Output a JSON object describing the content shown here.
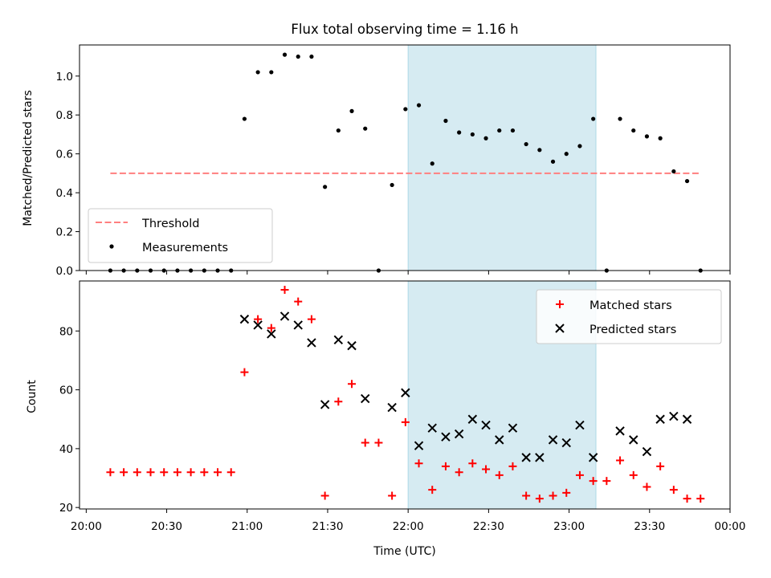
{
  "chart_data": {
    "title": "Flux total observing time = 1.16 h",
    "xlabel": "Time (UTC)",
    "x_tick_labels": [
      "20:00",
      "20:30",
      "21:00",
      "21:30",
      "22:00",
      "22:30",
      "23:00",
      "23:30",
      "00:00"
    ],
    "x_range_minutes_from_20_00": [
      -2.5,
      240
    ],
    "highlight_span": {
      "start": "22:00",
      "end": "23:10",
      "color": "#add8e6"
    },
    "panels": [
      {
        "type": "scatter",
        "ylabel": "Matched/Predicted stars",
        "ylim": [
          0,
          1.16
        ],
        "y_ticks": [
          "0.0",
          "0.2",
          "0.4",
          "0.6",
          "0.8",
          "1.0"
        ],
        "legend_position": "lower-left",
        "threshold": {
          "name": "Threshold",
          "value": 0.5,
          "x_start": "20:09",
          "x_end": "23:49",
          "color": "#ff7f7f"
        },
        "series": [
          {
            "name": "Measurements",
            "color": "#000000",
            "points": [
              [
                "20:09",
                0.0
              ],
              [
                "20:14",
                0.0
              ],
              [
                "20:19",
                0.0
              ],
              [
                "20:24",
                0.0
              ],
              [
                "20:29",
                0.0
              ],
              [
                "20:34",
                0.0
              ],
              [
                "20:39",
                0.0
              ],
              [
                "20:44",
                0.0
              ],
              [
                "20:49",
                0.0
              ],
              [
                "20:54",
                0.0
              ],
              [
                "20:59",
                0.78
              ],
              [
                "21:04",
                1.02
              ],
              [
                "21:09",
                1.02
              ],
              [
                "21:14",
                1.11
              ],
              [
                "21:19",
                1.1
              ],
              [
                "21:24",
                1.1
              ],
              [
                "21:29",
                0.43
              ],
              [
                "21:34",
                0.72
              ],
              [
                "21:39",
                0.82
              ],
              [
                "21:44",
                0.73
              ],
              [
                "21:49",
                0.0
              ],
              [
                "21:54",
                0.44
              ],
              [
                "21:59",
                0.83
              ],
              [
                "22:04",
                0.85
              ],
              [
                "22:09",
                0.55
              ],
              [
                "22:14",
                0.77
              ],
              [
                "22:19",
                0.71
              ],
              [
                "22:24",
                0.7
              ],
              [
                "22:29",
                0.68
              ],
              [
                "22:34",
                0.72
              ],
              [
                "22:39",
                0.72
              ],
              [
                "22:44",
                0.65
              ],
              [
                "22:49",
                0.62
              ],
              [
                "22:54",
                0.56
              ],
              [
                "22:59",
                0.6
              ],
              [
                "23:04",
                0.64
              ],
              [
                "23:09",
                0.78
              ],
              [
                "23:14",
                0.0
              ],
              [
                "23:19",
                0.78
              ],
              [
                "23:24",
                0.72
              ],
              [
                "23:29",
                0.69
              ],
              [
                "23:34",
                0.68
              ],
              [
                "23:39",
                0.51
              ],
              [
                "23:44",
                0.46
              ],
              [
                "23:49",
                0.0
              ]
            ]
          }
        ]
      },
      {
        "type": "scatter",
        "ylabel": "Count",
        "ylim": [
          19.5,
          97
        ],
        "y_ticks": [
          "20",
          "40",
          "60",
          "80"
        ],
        "legend_position": "upper-right",
        "series": [
          {
            "name": "Matched stars",
            "marker": "plus",
            "color": "#ff0000",
            "points": [
              [
                "20:09",
                32
              ],
              [
                "20:14",
                32
              ],
              [
                "20:19",
                32
              ],
              [
                "20:24",
                32
              ],
              [
                "20:29",
                32
              ],
              [
                "20:34",
                32
              ],
              [
                "20:39",
                32
              ],
              [
                "20:44",
                32
              ],
              [
                "20:49",
                32
              ],
              [
                "20:54",
                32
              ],
              [
                "20:59",
                66
              ],
              [
                "21:04",
                84
              ],
              [
                "21:09",
                81
              ],
              [
                "21:14",
                94
              ],
              [
                "21:19",
                90
              ],
              [
                "21:24",
                84
              ],
              [
                "21:29",
                24
              ],
              [
                "21:34",
                56
              ],
              [
                "21:39",
                62
              ],
              [
                "21:44",
                42
              ],
              [
                "21:49",
                42
              ],
              [
                "21:54",
                24
              ],
              [
                "21:59",
                49
              ],
              [
                "22:04",
                35
              ],
              [
                "22:09",
                26
              ],
              [
                "22:14",
                34
              ],
              [
                "22:19",
                32
              ],
              [
                "22:24",
                35
              ],
              [
                "22:29",
                33
              ],
              [
                "22:34",
                31
              ],
              [
                "22:39",
                34
              ],
              [
                "22:44",
                24
              ],
              [
                "22:49",
                23
              ],
              [
                "22:54",
                24
              ],
              [
                "22:59",
                25
              ],
              [
                "23:04",
                31
              ],
              [
                "23:09",
                29
              ],
              [
                "23:14",
                29
              ],
              [
                "23:19",
                36
              ],
              [
                "23:24",
                31
              ],
              [
                "23:29",
                27
              ],
              [
                "23:34",
                34
              ],
              [
                "23:39",
                26
              ],
              [
                "23:44",
                23
              ],
              [
                "23:49",
                23
              ]
            ]
          },
          {
            "name": "Predicted stars",
            "marker": "x",
            "color": "#000000",
            "points": [
              [
                "20:59",
                84
              ],
              [
                "21:04",
                82
              ],
              [
                "21:09",
                79
              ],
              [
                "21:14",
                85
              ],
              [
                "21:19",
                82
              ],
              [
                "21:24",
                76
              ],
              [
                "21:29",
                55
              ],
              [
                "21:34",
                77
              ],
              [
                "21:39",
                75
              ],
              [
                "21:44",
                57
              ],
              [
                "21:54",
                54
              ],
              [
                "21:59",
                59
              ],
              [
                "22:04",
                41
              ],
              [
                "22:09",
                47
              ],
              [
                "22:14",
                44
              ],
              [
                "22:19",
                45
              ],
              [
                "22:24",
                50
              ],
              [
                "22:29",
                48
              ],
              [
                "22:34",
                43
              ],
              [
                "22:39",
                47
              ],
              [
                "22:44",
                37
              ],
              [
                "22:49",
                37
              ],
              [
                "22:54",
                43
              ],
              [
                "22:59",
                42
              ],
              [
                "23:04",
                48
              ],
              [
                "23:09",
                37
              ],
              [
                "23:19",
                46
              ],
              [
                "23:24",
                43
              ],
              [
                "23:29",
                39
              ],
              [
                "23:34",
                50
              ],
              [
                "23:39",
                51
              ],
              [
                "23:44",
                50
              ]
            ]
          }
        ]
      }
    ]
  }
}
